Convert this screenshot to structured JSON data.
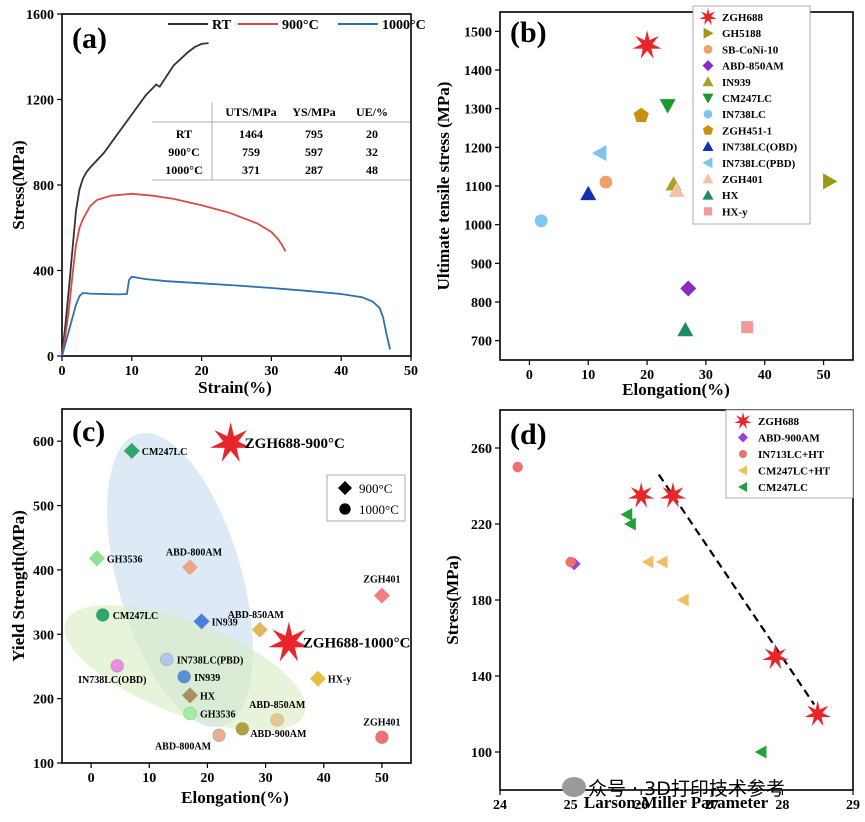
{
  "chart_data": [
    {
      "id": "a",
      "type": "line",
      "panel_label": "(a)",
      "xlabel": "Strain(%)",
      "ylabel": "Stress(MPa)",
      "xlim": [
        0,
        50
      ],
      "ylim": [
        0,
        1600
      ],
      "xticks": [
        0,
        10,
        20,
        30,
        40,
        50
      ],
      "yticks": [
        0,
        400,
        800,
        1200,
        1600
      ],
      "legend_position": "top",
      "series": [
        {
          "name": "RT",
          "color": "#333333",
          "x": [
            0,
            0.5,
            1.0,
            1.5,
            2.0,
            2.5,
            3.0,
            3.5,
            4.0,
            6.0,
            8.0,
            10.0,
            12.0,
            13.5,
            14.0,
            15.0,
            16.0,
            17.0,
            18.0,
            19.0,
            20.0,
            21.0
          ],
          "y": [
            0,
            150,
            320,
            500,
            680,
            780,
            830,
            860,
            880,
            950,
            1040,
            1130,
            1220,
            1270,
            1260,
            1310,
            1360,
            1390,
            1420,
            1445,
            1460,
            1464
          ]
        },
        {
          "name": "900°C",
          "color": "#d94b45",
          "x": [
            0,
            0.5,
            1.0,
            1.5,
            2.0,
            2.5,
            3.0,
            4.0,
            5.0,
            7.0,
            10.0,
            13.0,
            16.0,
            20.0,
            24.0,
            28.0,
            30.0,
            31.0,
            31.5,
            32.0
          ],
          "y": [
            0,
            100,
            220,
            380,
            520,
            600,
            640,
            700,
            730,
            750,
            759,
            750,
            735,
            705,
            670,
            620,
            580,
            545,
            520,
            490
          ]
        },
        {
          "name": "1000°C",
          "color": "#2e6fb0",
          "x": [
            0,
            0.5,
            1.0,
            1.5,
            2.0,
            2.5,
            3.0,
            4.0,
            6.0,
            8.0,
            9.3,
            9.6,
            10.0,
            12.0,
            15.0,
            20.0,
            25.0,
            30.0,
            35.0,
            40.0,
            43.0,
            44.5,
            45.5,
            46.0,
            46.5,
            47.0
          ],
          "y": [
            0,
            60,
            120,
            180,
            240,
            280,
            295,
            292,
            290,
            288,
            290,
            355,
            371,
            360,
            350,
            340,
            330,
            318,
            305,
            290,
            275,
            255,
            225,
            180,
            100,
            30
          ]
        }
      ],
      "table": {
        "columns": [
          "",
          "UTS/MPa",
          "YS/MPa",
          "UE/%"
        ],
        "rows": [
          [
            "RT",
            "1464",
            "795",
            "20"
          ],
          [
            "900°C",
            "759",
            "597",
            "32"
          ],
          [
            "1000°C",
            "371",
            "287",
            "48"
          ]
        ]
      }
    },
    {
      "id": "b",
      "type": "scatter",
      "panel_label": "(b)",
      "xlabel": "Elongation(%)",
      "ylabel": "Ultimate tensile stress (MPa)",
      "xlim": [
        -5,
        55
      ],
      "ylim": [
        650,
        1550
      ],
      "xticks": [
        0,
        10,
        20,
        30,
        40,
        50
      ],
      "yticks": [
        700,
        800,
        900,
        1000,
        1100,
        1200,
        1300,
        1400,
        1500
      ],
      "legend_position": "top-right",
      "series": [
        {
          "name": "ZGH688",
          "marker": "star",
          "color": "#e8262a",
          "points": [
            [
              20,
              1464
            ]
          ]
        },
        {
          "name": "GH5188",
          "marker": "tri-right",
          "color": "#9c9a14",
          "points": [
            [
              51,
              1112
            ]
          ]
        },
        {
          "name": "SB-CoNi-10",
          "marker": "circle",
          "color": "#f0a06a",
          "points": [
            [
              13,
              1110
            ]
          ]
        },
        {
          "name": "ABD-850AM",
          "marker": "diamond",
          "color": "#8a2bc8",
          "points": [
            [
              27,
              835
            ]
          ]
        },
        {
          "name": "IN939",
          "marker": "tri-up",
          "color": "#a8a22a",
          "points": [
            [
              24.5,
              1105
            ]
          ]
        },
        {
          "name": "CM247LC",
          "marker": "tri-down",
          "color": "#1a9a2a",
          "points": [
            [
              23.5,
              1308
            ]
          ]
        },
        {
          "name": "IN738LC",
          "marker": "circle",
          "color": "#7fc7f0",
          "points": [
            [
              2,
              1010
            ]
          ]
        },
        {
          "name": "ZGH451-1",
          "marker": "pentagon",
          "color": "#c8920f",
          "points": [
            [
              19,
              1282
            ]
          ]
        },
        {
          "name": "IN738LC(OBD)",
          "marker": "tri-up",
          "color": "#1330b5",
          "points": [
            [
              10,
              1080
            ]
          ]
        },
        {
          "name": "IN738LC(PBD)",
          "marker": "tri-left",
          "color": "#7fc3f0",
          "points": [
            [
              12,
              1185
            ]
          ]
        },
        {
          "name": "ZGH401",
          "marker": "tri-up",
          "color": "#f5c2a8",
          "points": [
            [
              25,
              1088
            ]
          ]
        },
        {
          "name": "HX",
          "marker": "tri-up",
          "color": "#1f8a6a",
          "points": [
            [
              26.5,
              728
            ]
          ]
        },
        {
          "name": "HX-y",
          "marker": "square",
          "color": "#f29a9a",
          "points": [
            [
              37,
              735
            ]
          ]
        }
      ]
    },
    {
      "id": "c",
      "type": "scatter",
      "panel_label": "(c)",
      "xlabel": "Elongation(%)",
      "ylabel": "Yield Strength(MPa)",
      "xlim": [
        -5,
        55
      ],
      "ylim": [
        100,
        650
      ],
      "xticks": [
        0,
        10,
        20,
        30,
        40,
        50
      ],
      "yticks": [
        100,
        200,
        300,
        400,
        500,
        600
      ],
      "legend": [
        {
          "symbol": "diamond",
          "label": "900°C"
        },
        {
          "symbol": "sphere",
          "label": "1000°C"
        }
      ],
      "points": [
        {
          "label": "ZGH688-900°C",
          "x": 24,
          "y": 597,
          "marker": "star",
          "color": "#e8262a",
          "label_style": "big"
        },
        {
          "label": "ZGH688-1000°C",
          "x": 34,
          "y": 287,
          "marker": "star",
          "color": "#e8262a",
          "label_style": "big"
        },
        {
          "label": "CM247LC",
          "x": 7,
          "y": 585,
          "marker": "diamond",
          "color": "#2ea86a"
        },
        {
          "label": "GH3536",
          "x": 1,
          "y": 418,
          "marker": "diamond",
          "color": "#8fe08f"
        },
        {
          "label": "ABD-800AM",
          "x": 17,
          "y": 404,
          "marker": "diamond",
          "color": "#e8a888"
        },
        {
          "label": "IN939",
          "x": 19,
          "y": 320,
          "marker": "diamond",
          "color": "#4a7fe0"
        },
        {
          "label": "ABD-850AM",
          "x": 29,
          "y": 307,
          "marker": "diamond",
          "color": "#e0b860"
        },
        {
          "label": "HX-y",
          "x": 39,
          "y": 231,
          "marker": "diamond",
          "color": "#e8c040"
        },
        {
          "label": "ZGH401",
          "x": 50,
          "y": 360,
          "marker": "diamond",
          "color": "#f08080"
        },
        {
          "label": "HX",
          "x": 17,
          "y": 205,
          "marker": "diamond",
          "color": "#a89060"
        },
        {
          "label": "CM247LC",
          "x": 2,
          "y": 330,
          "marker": "sphere",
          "color": "#2ea86a"
        },
        {
          "label": "IN738LC(OBD)",
          "x": 4.5,
          "y": 251,
          "marker": "sphere",
          "color": "#e890e0"
        },
        {
          "label": "IN738LC(PBD)",
          "x": 13,
          "y": 261,
          "marker": "sphere",
          "color": "#b0c8e8"
        },
        {
          "label": "IN939",
          "x": 16,
          "y": 234,
          "marker": "sphere",
          "color": "#5a90d8"
        },
        {
          "label": "GH3536",
          "x": 17,
          "y": 177,
          "marker": "sphere",
          "color": "#a0f0a0"
        },
        {
          "label": "ABD-850AM",
          "x": 32,
          "y": 167,
          "marker": "sphere",
          "color": "#e8c890"
        },
        {
          "label": "ABD-900AM",
          "x": 26,
          "y": 153,
          "marker": "sphere",
          "color": "#b0a040"
        },
        {
          "label": "ABD-800AM",
          "x": 22,
          "y": 143,
          "marker": "sphere",
          "color": "#e8b090"
        },
        {
          "label": "ZGH401",
          "x": 50,
          "y": 140,
          "marker": "sphere",
          "color": "#f07070"
        }
      ]
    },
    {
      "id": "d",
      "type": "scatter",
      "panel_label": "(d)",
      "xlabel": "Larson-Miller Parameter",
      "ylabel": "Stress(MPa)",
      "xlim": [
        24,
        29
      ],
      "ylim": [
        80,
        280
      ],
      "xticks": [
        24,
        25,
        26,
        27,
        28,
        29
      ],
      "yticks": [
        100,
        140,
        180,
        220,
        260
      ],
      "legend_position": "top-right",
      "series": [
        {
          "name": "ZGH688",
          "marker": "star",
          "color": "#e8262a",
          "points": [
            [
              26.0,
              235
            ],
            [
              26.45,
              235
            ],
            [
              27.9,
              150
            ],
            [
              28.5,
              120
            ]
          ]
        },
        {
          "name": "ABD-900AM",
          "marker": "diamond",
          "color": "#9a40e0",
          "points": [
            [
              25.05,
              199
            ]
          ]
        },
        {
          "name": "IN713LC+HT",
          "marker": "circle",
          "color": "#f07070",
          "points": [
            [
              24.25,
              250
            ],
            [
              25.0,
              200
            ]
          ]
        },
        {
          "name": "CM247LC+HT",
          "marker": "tri-left",
          "color": "#f0c060",
          "points": [
            [
              26.1,
              200
            ],
            [
              26.3,
              200
            ],
            [
              26.6,
              180
            ]
          ]
        },
        {
          "name": "CM247LC",
          "marker": "tri-left",
          "color": "#22a33a",
          "points": [
            [
              25.8,
              225
            ],
            [
              25.85,
              220
            ],
            [
              27.7,
              100
            ]
          ]
        }
      ],
      "trendline": {
        "x": [
          26.25,
          28.45
        ],
        "y": [
          246,
          125
        ],
        "style": "dashed"
      }
    }
  ],
  "watermark": "众号 · 3D打印技术参考"
}
